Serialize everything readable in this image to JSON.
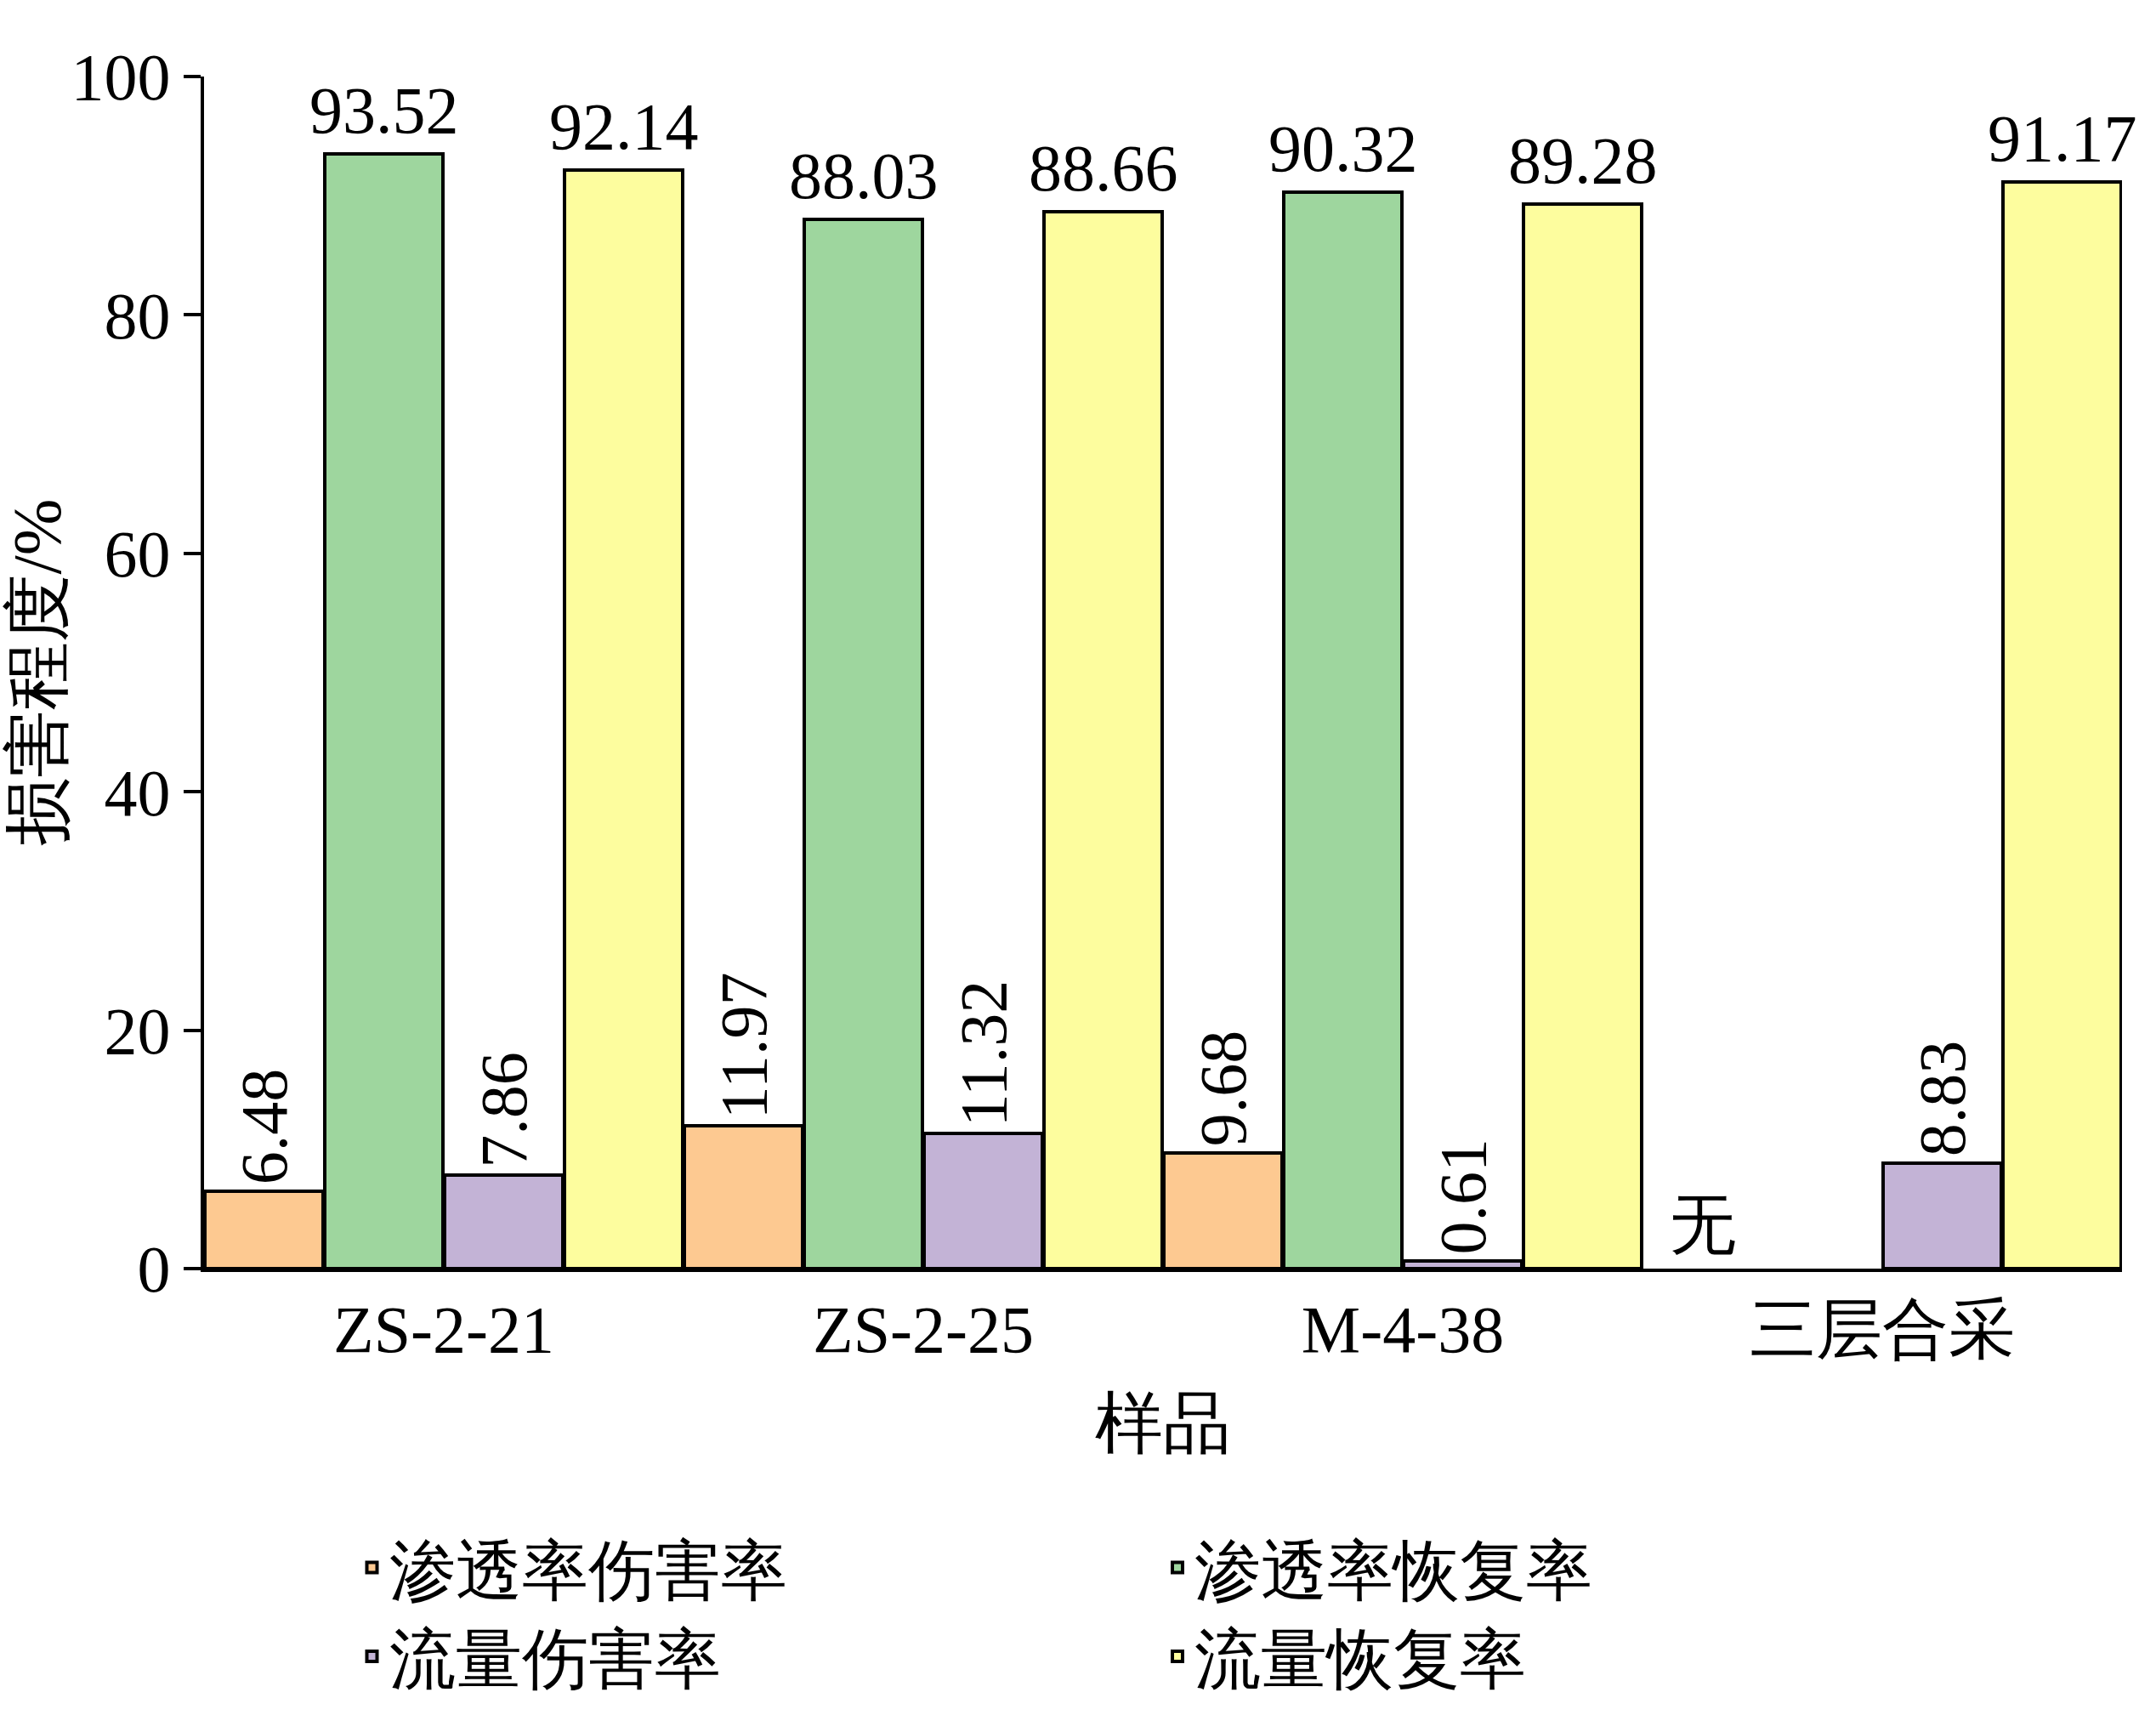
{
  "chart_data": {
    "type": "bar",
    "xlabel": "样品",
    "ylabel": "损害程度/%",
    "categories": [
      "ZS-2-21",
      "ZS-2-25",
      "M-4-38",
      "三层合采"
    ],
    "series": [
      {
        "name": "渗透率伤害率",
        "color": "#fdc991",
        "values": [
          6.48,
          11.97,
          9.68,
          null
        ],
        "value_labels": [
          "6.48",
          "11.97",
          "9.68",
          "无"
        ]
      },
      {
        "name": "渗透率恢复率",
        "color": "#9ed69e",
        "values": [
          93.52,
          88.03,
          90.32,
          null
        ],
        "value_labels": [
          "93.52",
          "88.03",
          "90.32",
          null
        ]
      },
      {
        "name": "流量伤害率",
        "color": "#c3b3d6",
        "values": [
          7.86,
          11.32,
          0.61,
          8.83
        ],
        "value_labels": [
          "7.86",
          "11.32",
          "0.61",
          "8.83"
        ]
      },
      {
        "name": "流量恢复率",
        "color": "#fdfd9e",
        "values": [
          92.14,
          88.66,
          89.28,
          91.17
        ],
        "value_labels": [
          "92.14",
          "88.66",
          "89.28",
          "91.17"
        ]
      }
    ],
    "ylim": [
      0,
      100
    ],
    "yticks": [
      0,
      20,
      40,
      60,
      80,
      100
    ],
    "legend": "bottom"
  }
}
